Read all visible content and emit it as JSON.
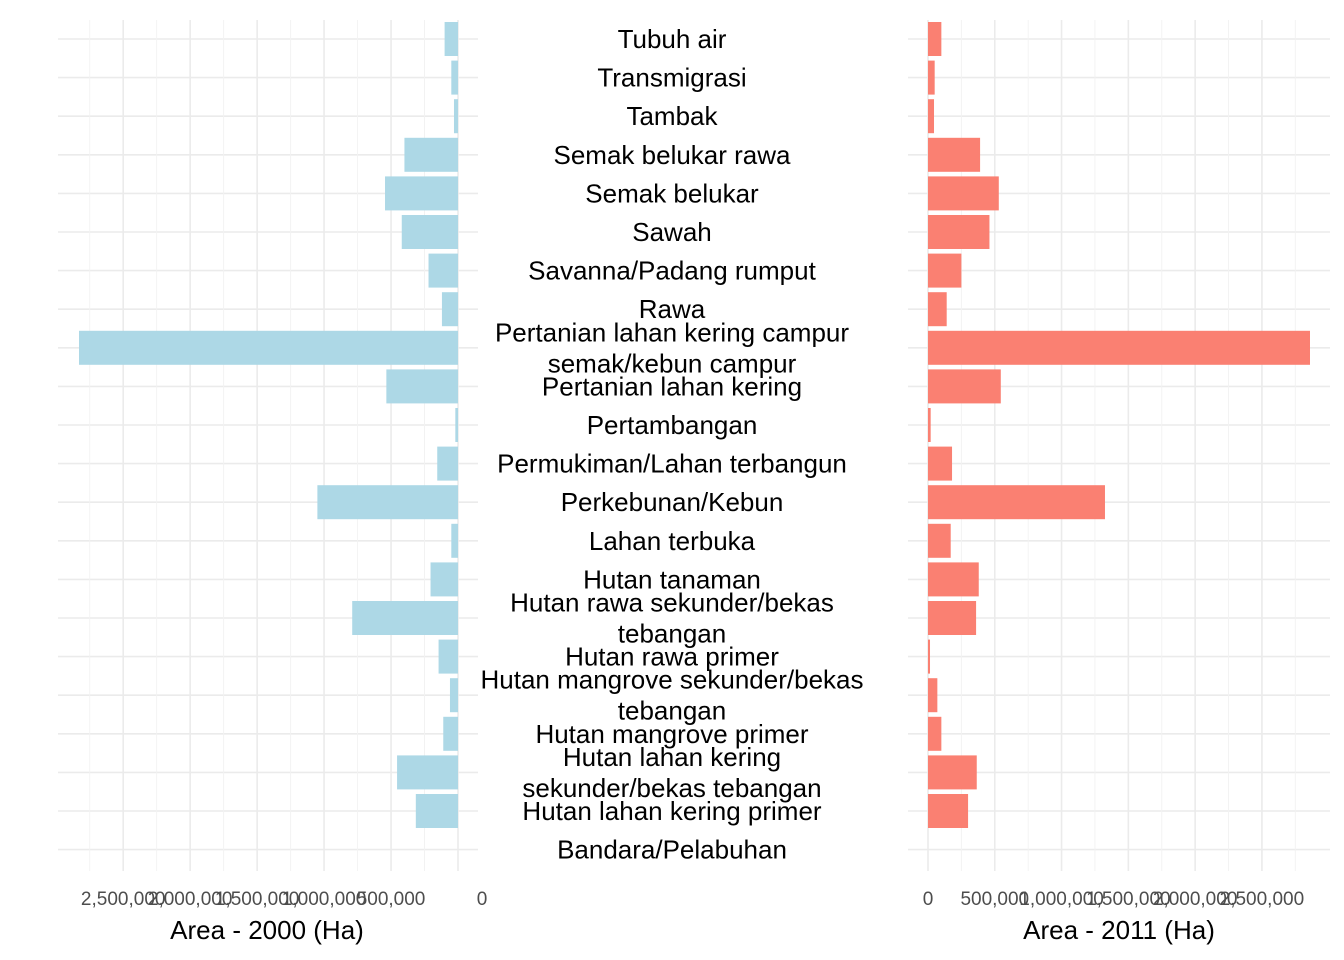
{
  "chart_data": {
    "type": "bar",
    "orientation": "horizontal-mirrored",
    "categories": [
      "Tubuh air",
      "Transmigrasi",
      "Tambak",
      "Semak belukar rawa",
      "Semak belukar",
      "Sawah",
      "Savanna/Padang rumput",
      "Rawa",
      "Pertanian lahan kering campur semak/kebun campur",
      "Pertanian lahan kering",
      "Pertambangan",
      "Permukiman/Lahan terbangun",
      "Perkebunan/Kebun",
      "Lahan terbuka",
      "Hutan tanaman",
      "Hutan rawa sekunder/bekas tebangan",
      "Hutan rawa primer",
      "Hutan mangrove sekunder/bekas tebangan",
      "Hutan mangrove primer",
      "Hutan lahan kering sekunder/bekas tebangan",
      "Hutan lahan kering primer",
      "Bandara/Pelabuhan"
    ],
    "category_label_lines": [
      [
        "Tubuh air"
      ],
      [
        "Transmigrasi"
      ],
      [
        "Tambak"
      ],
      [
        "Semak belukar rawa"
      ],
      [
        "Semak belukar"
      ],
      [
        "Sawah"
      ],
      [
        "Savanna/Padang rumput"
      ],
      [
        "Rawa"
      ],
      [
        "Pertanian lahan kering campur",
        "semak/kebun campur"
      ],
      [
        "Pertanian lahan kering"
      ],
      [
        "Pertambangan"
      ],
      [
        "Permukiman/Lahan terbangun"
      ],
      [
        "Perkebunan/Kebun"
      ],
      [
        "Lahan terbuka"
      ],
      [
        "Hutan tanaman"
      ],
      [
        "Hutan rawa sekunder/bekas",
        "tebangan"
      ],
      [
        "Hutan rawa primer"
      ],
      [
        "Hutan mangrove sekunder/bekas",
        "tebangan"
      ],
      [
        "Hutan mangrove primer"
      ],
      [
        "Hutan lahan kering",
        "sekunder/bekas tebangan"
      ],
      [
        "Hutan lahan kering primer"
      ],
      [
        "Bandara/Pelabuhan"
      ]
    ],
    "series": [
      {
        "values": [
          100000,
          50000,
          30000,
          400000,
          545000,
          420000,
          220000,
          120000,
          2830000,
          535000,
          20000,
          155000,
          1050000,
          50000,
          205000,
          790000,
          145000,
          60000,
          110000,
          455000,
          315000,
          0
        ],
        "color": "#ADD8E6"
      },
      {
        "values": [
          100000,
          50000,
          45000,
          390000,
          530000,
          460000,
          250000,
          140000,
          2860000,
          545000,
          20000,
          180000,
          1325000,
          170000,
          380000,
          360000,
          15000,
          70000,
          100000,
          365000,
          300000,
          0
        ],
        "color": "#FA8072"
      }
    ],
    "panels": [
      {
        "xlabel": "Area - 2000 (Ha)",
        "direction": "reversed",
        "xlim": [
          0,
          3000000
        ],
        "tick_values": [
          2500000,
          2000000,
          1500000,
          1000000,
          500000,
          0
        ],
        "tick_labels": [
          "2,500,000",
          "2,000,000",
          "1,500,000",
          "1,000,000",
          "500,000",
          "0"
        ]
      },
      {
        "xlabel": "Area - 2011 (Ha)",
        "direction": "normal",
        "xlim": [
          0,
          2900000
        ],
        "tick_values": [
          0,
          500000,
          1000000,
          1500000,
          2000000,
          2500000
        ],
        "tick_labels": [
          "0",
          "500,000",
          "1,000,000",
          "1,500,000",
          "2,000,000",
          "2,500,000"
        ]
      }
    ],
    "grid": true,
    "legend": "none"
  }
}
